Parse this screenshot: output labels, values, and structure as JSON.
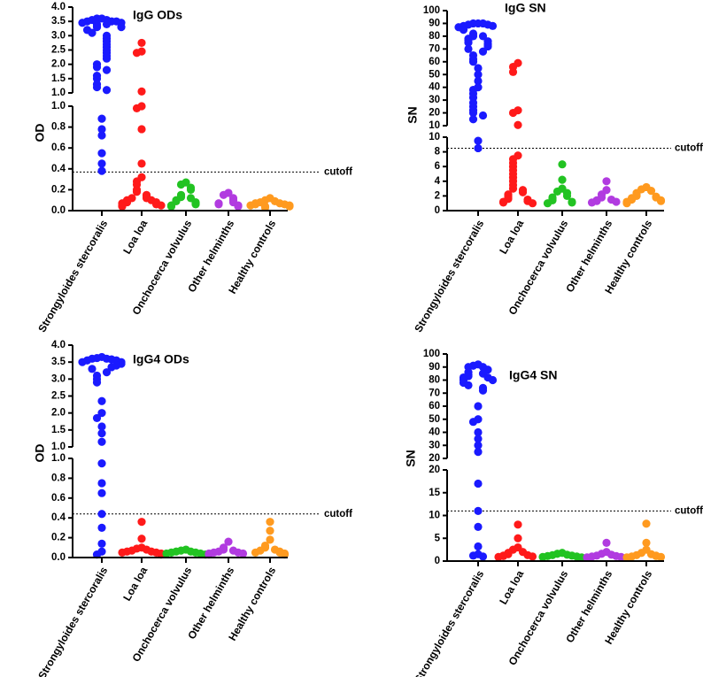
{
  "chart_data": [
    {
      "type": "strip",
      "title": "IgG ODs",
      "ylabel": "OD",
      "categories": [
        "Strongyloides stercoralis",
        "Loa loa",
        "Onchocerca volvulus",
        "Other helminths",
        "Healthy controls"
      ],
      "colors": [
        "#1a1aff",
        "#ff1a1a",
        "#22c322",
        "#b13be0",
        "#ff9a1f"
      ],
      "values": [
        [
          3.6,
          3.6,
          3.55,
          3.55,
          3.5,
          3.5,
          3.5,
          3.45,
          3.45,
          3.4,
          3.4,
          3.35,
          3.3,
          3.3,
          3.2,
          3.1,
          3.0,
          2.9,
          2.8,
          2.7,
          2.6,
          2.5,
          2.4,
          2.3,
          2.2,
          2.0,
          1.9,
          1.8,
          1.6,
          1.5,
          1.3,
          1.2,
          1.1,
          0.88,
          0.78,
          0.72,
          0.55,
          0.45,
          0.38
        ],
        [
          2.75,
          2.45,
          2.4,
          1.05,
          1.0,
          0.98,
          0.78,
          0.45,
          0.32,
          0.28,
          0.25,
          0.2,
          0.18,
          0.15,
          0.14,
          0.12,
          0.12,
          0.1,
          0.1,
          0.09,
          0.08,
          0.08,
          0.07,
          0.06,
          0.05,
          0.05,
          0.04
        ],
        [
          0.27,
          0.25,
          0.22,
          0.2,
          0.15,
          0.13,
          0.12,
          0.1,
          0.09,
          0.08,
          0.07,
          0.06,
          0.05,
          0.04
        ],
        [
          0.17,
          0.15,
          0.12,
          0.1,
          0.08,
          0.07,
          0.06,
          0.05,
          0.04
        ],
        [
          0.12,
          0.1,
          0.09,
          0.08,
          0.07,
          0.07,
          0.06,
          0.06,
          0.05,
          0.05,
          0.04,
          0.04,
          0.03
        ]
      ],
      "ylim": [
        0,
        1
      ],
      "yticks": [
        {
          "value": 0,
          "label": "0.0"
        },
        0.2,
        0.4,
        0.6,
        0.8,
        {
          "value": 1,
          "label": "1.0"
        }
      ],
      "ylim_upper": [
        1,
        4
      ],
      "yticks_upper": [
        {
          "value": 1,
          "label": "1.0"
        },
        1.5,
        {
          "value": 2,
          "label": "2.0"
        },
        2.5,
        {
          "value": 3,
          "label": "3.0"
        },
        3.5,
        {
          "value": 4,
          "label": "4.0"
        }
      ],
      "cutoff": {
        "value": 0.37,
        "label": "cutoff"
      }
    },
    {
      "type": "strip",
      "title": "IgG SN",
      "ylabel": "SN",
      "categories": [
        "Strongyloides stercoralis",
        "Loa loa",
        "Onchocerca volvulus",
        "Other helminths",
        "Healthy controls"
      ],
      "colors": [
        "#1a1aff",
        "#ff1a1a",
        "#22c322",
        "#b13be0",
        "#ff9a1f"
      ],
      "values": [
        [
          90,
          90,
          90,
          89,
          89,
          88,
          88,
          87,
          85,
          82,
          80,
          80,
          78,
          77,
          76,
          75,
          74,
          73,
          72,
          70,
          68,
          65,
          62,
          60,
          55,
          50,
          45,
          40,
          38,
          35,
          32,
          28,
          25,
          22,
          20,
          18,
          15,
          9.5,
          8.5
        ],
        [
          59,
          56,
          52,
          22,
          20,
          10.5,
          7.5,
          7,
          6.5,
          6,
          5.5,
          5,
          4.5,
          4,
          3.5,
          3,
          2.8,
          2.5,
          2.2,
          2,
          1.8,
          1.6,
          1.5,
          1.3,
          1.2,
          1.1,
          1.0
        ],
        [
          6.3,
          4.2,
          3,
          2.6,
          2.4,
          2,
          1.8,
          1.6,
          1.4,
          1.2,
          1.1,
          1.0
        ],
        [
          4,
          2.8,
          2.2,
          1.8,
          1.5,
          1.4,
          1.3,
          1.2,
          1.1
        ],
        [
          3.2,
          2.9,
          2.7,
          2.4,
          2.2,
          2,
          1.9,
          1.8,
          1.7,
          1.5,
          1.4,
          1.3,
          1.2,
          1.1,
          1.0
        ]
      ],
      "ylim": [
        0,
        10
      ],
      "yticks": [
        0,
        2,
        4,
        6,
        8,
        10
      ],
      "ylim_upper": [
        10,
        100
      ],
      "yticks_upper": [
        10,
        20,
        30,
        40,
        50,
        60,
        70,
        80,
        90,
        100
      ],
      "cutoff": {
        "value": 8.5,
        "label": "cutoff"
      }
    },
    {
      "type": "strip",
      "title": "IgG4 ODs",
      "ylabel": "OD",
      "categories": [
        "Strongyloides stercoralis",
        "Loa loa",
        "Onchocerca volvulus",
        "Other helminths",
        "Healthy controls"
      ],
      "colors": [
        "#1a1aff",
        "#ff1a1a",
        "#22c322",
        "#b13be0",
        "#ff9a1f"
      ],
      "values": [
        [
          3.65,
          3.62,
          3.6,
          3.6,
          3.58,
          3.55,
          3.55,
          3.5,
          3.5,
          3.45,
          3.4,
          3.35,
          3.3,
          3.2,
          3.1,
          3.0,
          2.9,
          2.35,
          2.0,
          1.85,
          1.6,
          1.4,
          1.15,
          0.95,
          0.75,
          0.65,
          0.44,
          0.3,
          0.14,
          0.06,
          0.03
        ],
        [
          0.36,
          0.19,
          0.1,
          0.09,
          0.08,
          0.07,
          0.06,
          0.06,
          0.05,
          0.05,
          0.04,
          0.03
        ],
        [
          0.08,
          0.07,
          0.06,
          0.06,
          0.05,
          0.05,
          0.04,
          0.04,
          0.03
        ],
        [
          0.16,
          0.1,
          0.08,
          0.07,
          0.06,
          0.05,
          0.05,
          0.04,
          0.04,
          0.03
        ],
        [
          0.36,
          0.27,
          0.18,
          0.12,
          0.1,
          0.08,
          0.07,
          0.06,
          0.05,
          0.05,
          0.04,
          0.03
        ]
      ],
      "ylim": [
        0,
        1
      ],
      "yticks": [
        {
          "value": 0,
          "label": "0.0"
        },
        0.2,
        0.4,
        0.6,
        0.8,
        {
          "value": 1,
          "label": "1.0"
        }
      ],
      "ylim_upper": [
        1,
        4
      ],
      "yticks_upper": [
        {
          "value": 1,
          "label": "1.0"
        },
        1.5,
        {
          "value": 2,
          "label": "2.0"
        },
        2.5,
        {
          "value": 3,
          "label": "3.0"
        },
        3.5,
        {
          "value": 4,
          "label": "4.0"
        }
      ],
      "cutoff": {
        "value": 0.44,
        "label": "cutoff"
      }
    },
    {
      "type": "strip",
      "title": "IgG4 SN",
      "ylabel": "SN",
      "categories": [
        "Strongyloides stercoralis",
        "Loa loa",
        "Onchocerca volvulus",
        "Other helminths",
        "Healthy controls"
      ],
      "colors": [
        "#1a1aff",
        "#ff1a1a",
        "#22c322",
        "#b13be0",
        "#ff9a1f"
      ],
      "values": [
        [
          92,
          91,
          90,
          90,
          88,
          86,
          85,
          84,
          83,
          82,
          82,
          81,
          80,
          80,
          78,
          76,
          74,
          72,
          60,
          50,
          48,
          40,
          35,
          30,
          25,
          17,
          11,
          7.5,
          3.2,
          1.5,
          1.2,
          1
        ],
        [
          8,
          5,
          3,
          2.5,
          2,
          1.8,
          1.5,
          1.3,
          1.2,
          1.1,
          1,
          0.9
        ],
        [
          1.8,
          1.6,
          1.4,
          1.3,
          1.2,
          1.1,
          1,
          0.9,
          0.8
        ],
        [
          4,
          2,
          1.6,
          1.4,
          1.2,
          1.1,
          1,
          0.9,
          0.8
        ],
        [
          8.2,
          4,
          2.5,
          1.8,
          1.5,
          1.3,
          1.2,
          1.1,
          1,
          0.9,
          0.8
        ]
      ],
      "ylim": [
        0,
        20
      ],
      "yticks": [
        0,
        5,
        10,
        15,
        20
      ],
      "ylim_upper": [
        20,
        100
      ],
      "yticks_upper": [
        20,
        30,
        40,
        50,
        60,
        70,
        80,
        90,
        100
      ],
      "cutoff": {
        "value": 11,
        "label": "cutoff"
      }
    }
  ]
}
